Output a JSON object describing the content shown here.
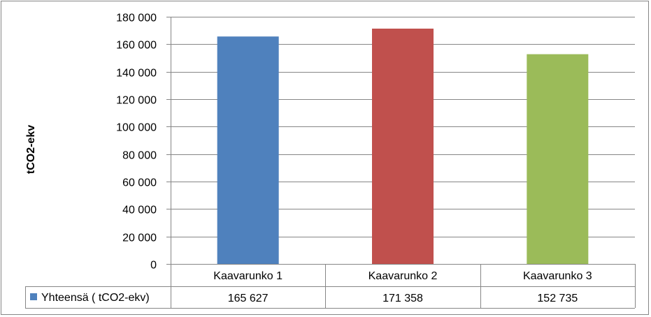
{
  "chart_data": {
    "type": "bar",
    "title": "",
    "xlabel": "",
    "ylabel": "tCO2-ekv",
    "ylim": [
      0,
      180000
    ],
    "yticks": [
      "0",
      "20 000",
      "40 000",
      "60 000",
      "80 000",
      "100 000",
      "120 000",
      "140 000",
      "160 000",
      "180 000"
    ],
    "categories": [
      "Kaavarunko 1",
      "Kaavarunko 2",
      "Kaavarunko 3"
    ],
    "values": [
      165627,
      171358,
      152735
    ],
    "bar_colors": [
      "#4f81bd",
      "#c0504d",
      "#9bbb59"
    ],
    "grid": true,
    "data_table": {
      "series_name": "Yhteensä ( tCO2-ekv)",
      "legend_key_color": "#4f81bd",
      "values": [
        "165 627",
        "171 358",
        "152 735"
      ]
    }
  }
}
